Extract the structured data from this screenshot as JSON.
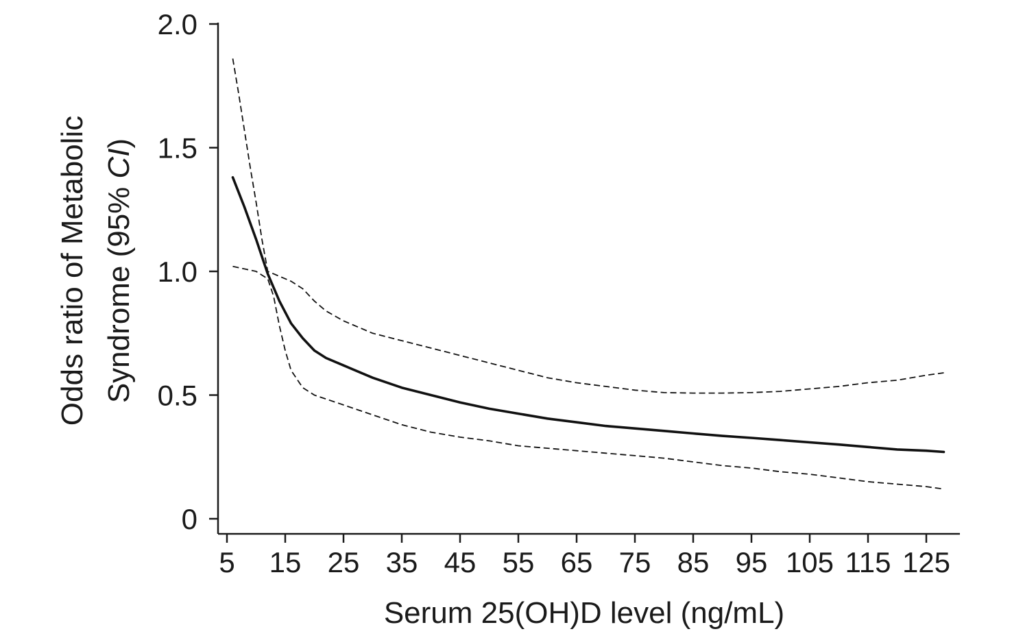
{
  "chart_data": {
    "type": "line",
    "title": "",
    "xlabel": "Serum 25(OH)D level (ng/mL)",
    "ylabel_line1": "Odds ratio of Metabolic",
    "ylabel_line2_prefix": "Syndrome (95% ",
    "ylabel_line2_italic": "CI",
    "ylabel_line2_suffix": ")",
    "xlim": [
      3,
      130
    ],
    "ylim": [
      -0.06,
      2.0
    ],
    "x_ticks": [
      5,
      15,
      25,
      35,
      45,
      55,
      65,
      75,
      85,
      95,
      105,
      115,
      125
    ],
    "x_tick_labels": [
      "5",
      "15",
      "25",
      "35",
      "45",
      "55",
      "65",
      "75",
      "85",
      "95",
      "105",
      "115",
      "125"
    ],
    "y_ticks": [
      0,
      0.5,
      1.0,
      1.5,
      2.0
    ],
    "y_tick_labels": [
      "0",
      "0.5",
      "1.0",
      "1.5",
      "2.0"
    ],
    "grid": false,
    "legend": "none",
    "series": [
      {
        "role": "odds_ratio",
        "style": "solid",
        "points": [
          [
            6,
            1.38
          ],
          [
            8,
            1.26
          ],
          [
            10,
            1.13
          ],
          [
            12,
            0.99
          ],
          [
            14,
            0.88
          ],
          [
            16,
            0.79
          ],
          [
            18,
            0.73
          ],
          [
            20,
            0.68
          ],
          [
            22,
            0.65
          ],
          [
            25,
            0.62
          ],
          [
            30,
            0.57
          ],
          [
            35,
            0.53
          ],
          [
            40,
            0.5
          ],
          [
            45,
            0.47
          ],
          [
            50,
            0.445
          ],
          [
            55,
            0.425
          ],
          [
            60,
            0.405
          ],
          [
            65,
            0.39
          ],
          [
            70,
            0.375
          ],
          [
            75,
            0.365
          ],
          [
            80,
            0.355
          ],
          [
            85,
            0.345
          ],
          [
            90,
            0.335
          ],
          [
            95,
            0.327
          ],
          [
            100,
            0.318
          ],
          [
            105,
            0.309
          ],
          [
            110,
            0.3
          ],
          [
            115,
            0.29
          ],
          [
            120,
            0.28
          ],
          [
            125,
            0.275
          ],
          [
            128,
            0.27
          ]
        ]
      },
      {
        "role": "ci_upper",
        "style": "dashed",
        "points": [
          [
            6,
            1.86
          ],
          [
            7,
            1.72
          ],
          [
            8,
            1.57
          ],
          [
            9,
            1.42
          ],
          [
            10,
            1.28
          ],
          [
            11,
            1.13
          ],
          [
            12,
            1.0
          ],
          [
            14,
            0.98
          ],
          [
            16,
            0.96
          ],
          [
            18,
            0.93
          ],
          [
            20,
            0.88
          ],
          [
            22,
            0.84
          ],
          [
            25,
            0.8
          ],
          [
            30,
            0.75
          ],
          [
            35,
            0.72
          ],
          [
            40,
            0.69
          ],
          [
            45,
            0.66
          ],
          [
            50,
            0.63
          ],
          [
            55,
            0.6
          ],
          [
            60,
            0.57
          ],
          [
            65,
            0.55
          ],
          [
            70,
            0.535
          ],
          [
            75,
            0.52
          ],
          [
            80,
            0.51
          ],
          [
            85,
            0.508
          ],
          [
            90,
            0.508
          ],
          [
            95,
            0.51
          ],
          [
            100,
            0.515
          ],
          [
            105,
            0.525
          ],
          [
            110,
            0.535
          ],
          [
            115,
            0.55
          ],
          [
            120,
            0.56
          ],
          [
            125,
            0.58
          ],
          [
            128,
            0.59
          ]
        ]
      },
      {
        "role": "ci_lower",
        "style": "dashed",
        "points": [
          [
            6,
            1.02
          ],
          [
            8,
            1.01
          ],
          [
            10,
            1.0
          ],
          [
            12,
            0.97
          ],
          [
            13,
            0.9
          ],
          [
            14,
            0.78
          ],
          [
            15,
            0.68
          ],
          [
            16,
            0.6
          ],
          [
            18,
            0.53
          ],
          [
            20,
            0.5
          ],
          [
            25,
            0.46
          ],
          [
            30,
            0.42
          ],
          [
            35,
            0.38
          ],
          [
            40,
            0.35
          ],
          [
            45,
            0.33
          ],
          [
            50,
            0.315
          ],
          [
            55,
            0.295
          ],
          [
            60,
            0.285
          ],
          [
            65,
            0.275
          ],
          [
            70,
            0.265
          ],
          [
            75,
            0.255
          ],
          [
            80,
            0.245
          ],
          [
            85,
            0.23
          ],
          [
            90,
            0.215
          ],
          [
            95,
            0.205
          ],
          [
            100,
            0.19
          ],
          [
            105,
            0.18
          ],
          [
            110,
            0.165
          ],
          [
            115,
            0.15
          ],
          [
            120,
            0.14
          ],
          [
            125,
            0.13
          ],
          [
            128,
            0.12
          ]
        ]
      }
    ]
  }
}
